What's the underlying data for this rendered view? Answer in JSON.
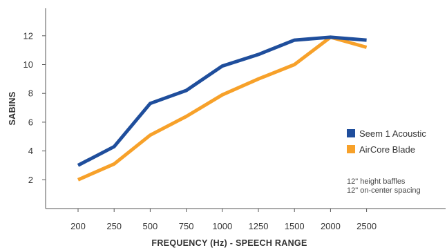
{
  "chart_data": {
    "type": "line",
    "categories": [
      "200",
      "250",
      "500",
      "750",
      "1000",
      "1250",
      "1500",
      "2000",
      "2500"
    ],
    "series": [
      {
        "name": "Seem 1 Acoustic",
        "color": "#1f4e9c",
        "values": [
          3.0,
          4.3,
          7.3,
          8.2,
          9.9,
          10.7,
          11.7,
          11.9,
          11.7
        ]
      },
      {
        "name": "AirCore Blade",
        "color": "#f7a12a",
        "values": [
          2.0,
          3.1,
          5.1,
          6.4,
          7.9,
          9.0,
          10.0,
          11.9,
          11.2
        ]
      }
    ],
    "xlabel": "FREQUENCY (Hz) - SPEECH RANGE",
    "ylabel": "SABINS",
    "yticks": [
      2,
      4,
      6,
      8,
      10,
      12
    ],
    "ylim": [
      0,
      13.6
    ],
    "grid": false,
    "legend_position": "right",
    "notes": [
      "12\" height baffles",
      "12\" on-center spacing"
    ]
  }
}
